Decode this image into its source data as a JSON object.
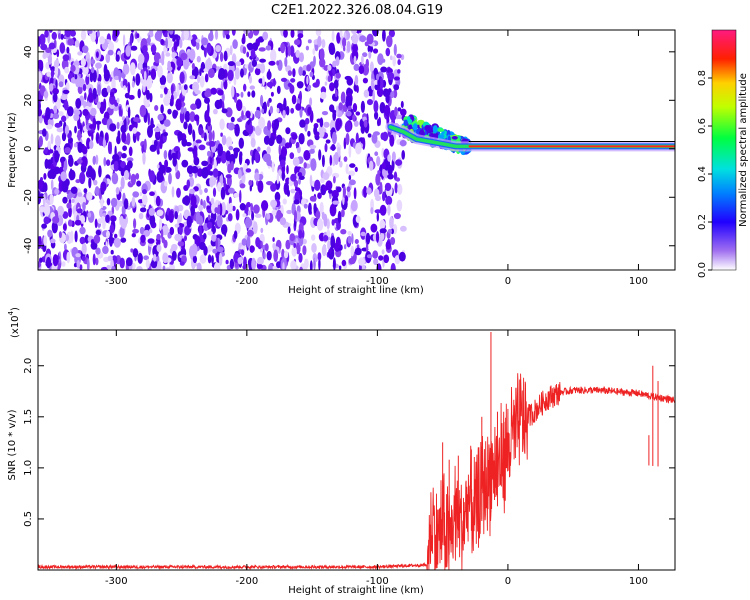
{
  "figure": {
    "title": "C2E1.2022.326.08.04.G19"
  },
  "chart_data": [
    {
      "type": "heatmap",
      "xlabel": "Height of straight line (km)",
      "ylabel": "Frequency (Hz)",
      "xlim": [
        -360,
        128
      ],
      "ylim": [
        -50,
        49
      ],
      "xticks": [
        -300,
        -200,
        -100,
        0,
        100
      ],
      "yticks": [
        -40,
        -20,
        0,
        20,
        40
      ],
      "grid": false,
      "colorbar": {
        "label": "Normalized spectral amplitude",
        "range": [
          0,
          1
        ],
        "ticks": [
          0.0,
          0.2,
          0.4,
          0.6,
          0.8
        ],
        "tick_labels": [
          "0.0",
          "0.2",
          "0.4",
          "0.6",
          "0.8"
        ],
        "colormap": [
          "#ffffff",
          "#8a2be2",
          "#0000ff",
          "#00e0ff",
          "#00ff00",
          "#ffff00",
          "#ff0000",
          "#ff1493"
        ]
      },
      "regions": [
        {
          "x_range": [
            -360,
            -80
          ],
          "y_range": [
            -50,
            49
          ],
          "amplitude": 0.12,
          "description_color": "#7b2cf0"
        },
        {
          "x_range": [
            -80,
            -30
          ],
          "y_range": [
            -6,
            12
          ],
          "amplitude": 0.45,
          "description_color": "#00e0a0"
        },
        {
          "x_range": [
            -30,
            128
          ],
          "y_range": [
            -2,
            3
          ],
          "amplitude": 0.8,
          "description_color": "#ff2020"
        }
      ],
      "carrier_track": [
        {
          "x": -90,
          "y": 9
        },
        {
          "x": -80,
          "y": 7
        },
        {
          "x": -70,
          "y": 4
        },
        {
          "x": -60,
          "y": 3
        },
        {
          "x": -50,
          "y": 2
        },
        {
          "x": -40,
          "y": 1
        },
        {
          "x": -30,
          "y": 1
        },
        {
          "x": -20,
          "y": 1
        },
        {
          "x": 0,
          "y": 1
        },
        {
          "x": 20,
          "y": 1
        },
        {
          "x": 50,
          "y": 1
        },
        {
          "x": 80,
          "y": 1
        },
        {
          "x": 100,
          "y": 1
        },
        {
          "x": 128,
          "y": 1
        }
      ]
    },
    {
      "type": "line",
      "xlabel": "Height of straight line (km)",
      "ylabel": "SNR (10 * v/v)",
      "y_multiplier": "(x10",
      "y_multiplier_exp": "4",
      "xlim": [
        -360,
        128
      ],
      "ylim": [
        0,
        2.35
      ],
      "xticks": [
        -300,
        -200,
        -100,
        0,
        100
      ],
      "yticks": [
        0.5,
        1.0,
        1.5,
        2.0
      ],
      "ytick_labels": [
        "0.5",
        "1.0",
        "1.5",
        "2.0"
      ],
      "grid": false,
      "series": [
        {
          "color": "#ee2222",
          "points": [
            {
              "x": -360,
              "y": 0.03
            },
            {
              "x": -300,
              "y": 0.03
            },
            {
              "x": -250,
              "y": 0.03
            },
            {
              "x": -200,
              "y": 0.03
            },
            {
              "x": -150,
              "y": 0.03
            },
            {
              "x": -100,
              "y": 0.03
            },
            {
              "x": -62,
              "y": 0.05
            },
            {
              "x": -58,
              "y": 0.5
            },
            {
              "x": -55,
              "y": 0.3
            },
            {
              "x": -50,
              "y": 0.45
            },
            {
              "x": -45,
              "y": 0.25
            },
            {
              "x": -40,
              "y": 0.6
            },
            {
              "x": -35,
              "y": 0.4
            },
            {
              "x": -30,
              "y": 0.7
            },
            {
              "x": -25,
              "y": 0.55
            },
            {
              "x": -20,
              "y": 0.8
            },
            {
              "x": -15,
              "y": 0.9
            },
            {
              "x": -10,
              "y": 1.0
            },
            {
              "x": -5,
              "y": 1.1
            },
            {
              "x": 0,
              "y": 1.2
            },
            {
              "x": 5,
              "y": 1.35
            },
            {
              "x": 10,
              "y": 1.45
            },
            {
              "x": 20,
              "y": 1.55
            },
            {
              "x": 30,
              "y": 1.68
            },
            {
              "x": 40,
              "y": 1.74
            },
            {
              "x": 50,
              "y": 1.76
            },
            {
              "x": 60,
              "y": 1.76
            },
            {
              "x": 70,
              "y": 1.76
            },
            {
              "x": 80,
              "y": 1.75
            },
            {
              "x": 90,
              "y": 1.74
            },
            {
              "x": 100,
              "y": 1.73
            },
            {
              "x": 110,
              "y": 1.7
            },
            {
              "x": 120,
              "y": 1.68
            },
            {
              "x": 128,
              "y": 1.66
            }
          ],
          "spikes": [
            {
              "x": -50,
              "y": 1.25
            },
            {
              "x": -45,
              "y": 1.08
            },
            {
              "x": -38,
              "y": 1.12
            },
            {
              "x": -28,
              "y": 1.18
            },
            {
              "x": -20,
              "y": 1.5
            },
            {
              "x": -13,
              "y": 2.33
            },
            {
              "x": -8,
              "y": 1.55
            },
            {
              "x": -3,
              "y": 1.45
            },
            {
              "x": 108,
              "y": 1.32
            },
            {
              "x": 111,
              "y": 2.0
            },
            {
              "x": 115,
              "y": 1.85
            }
          ]
        }
      ]
    }
  ]
}
